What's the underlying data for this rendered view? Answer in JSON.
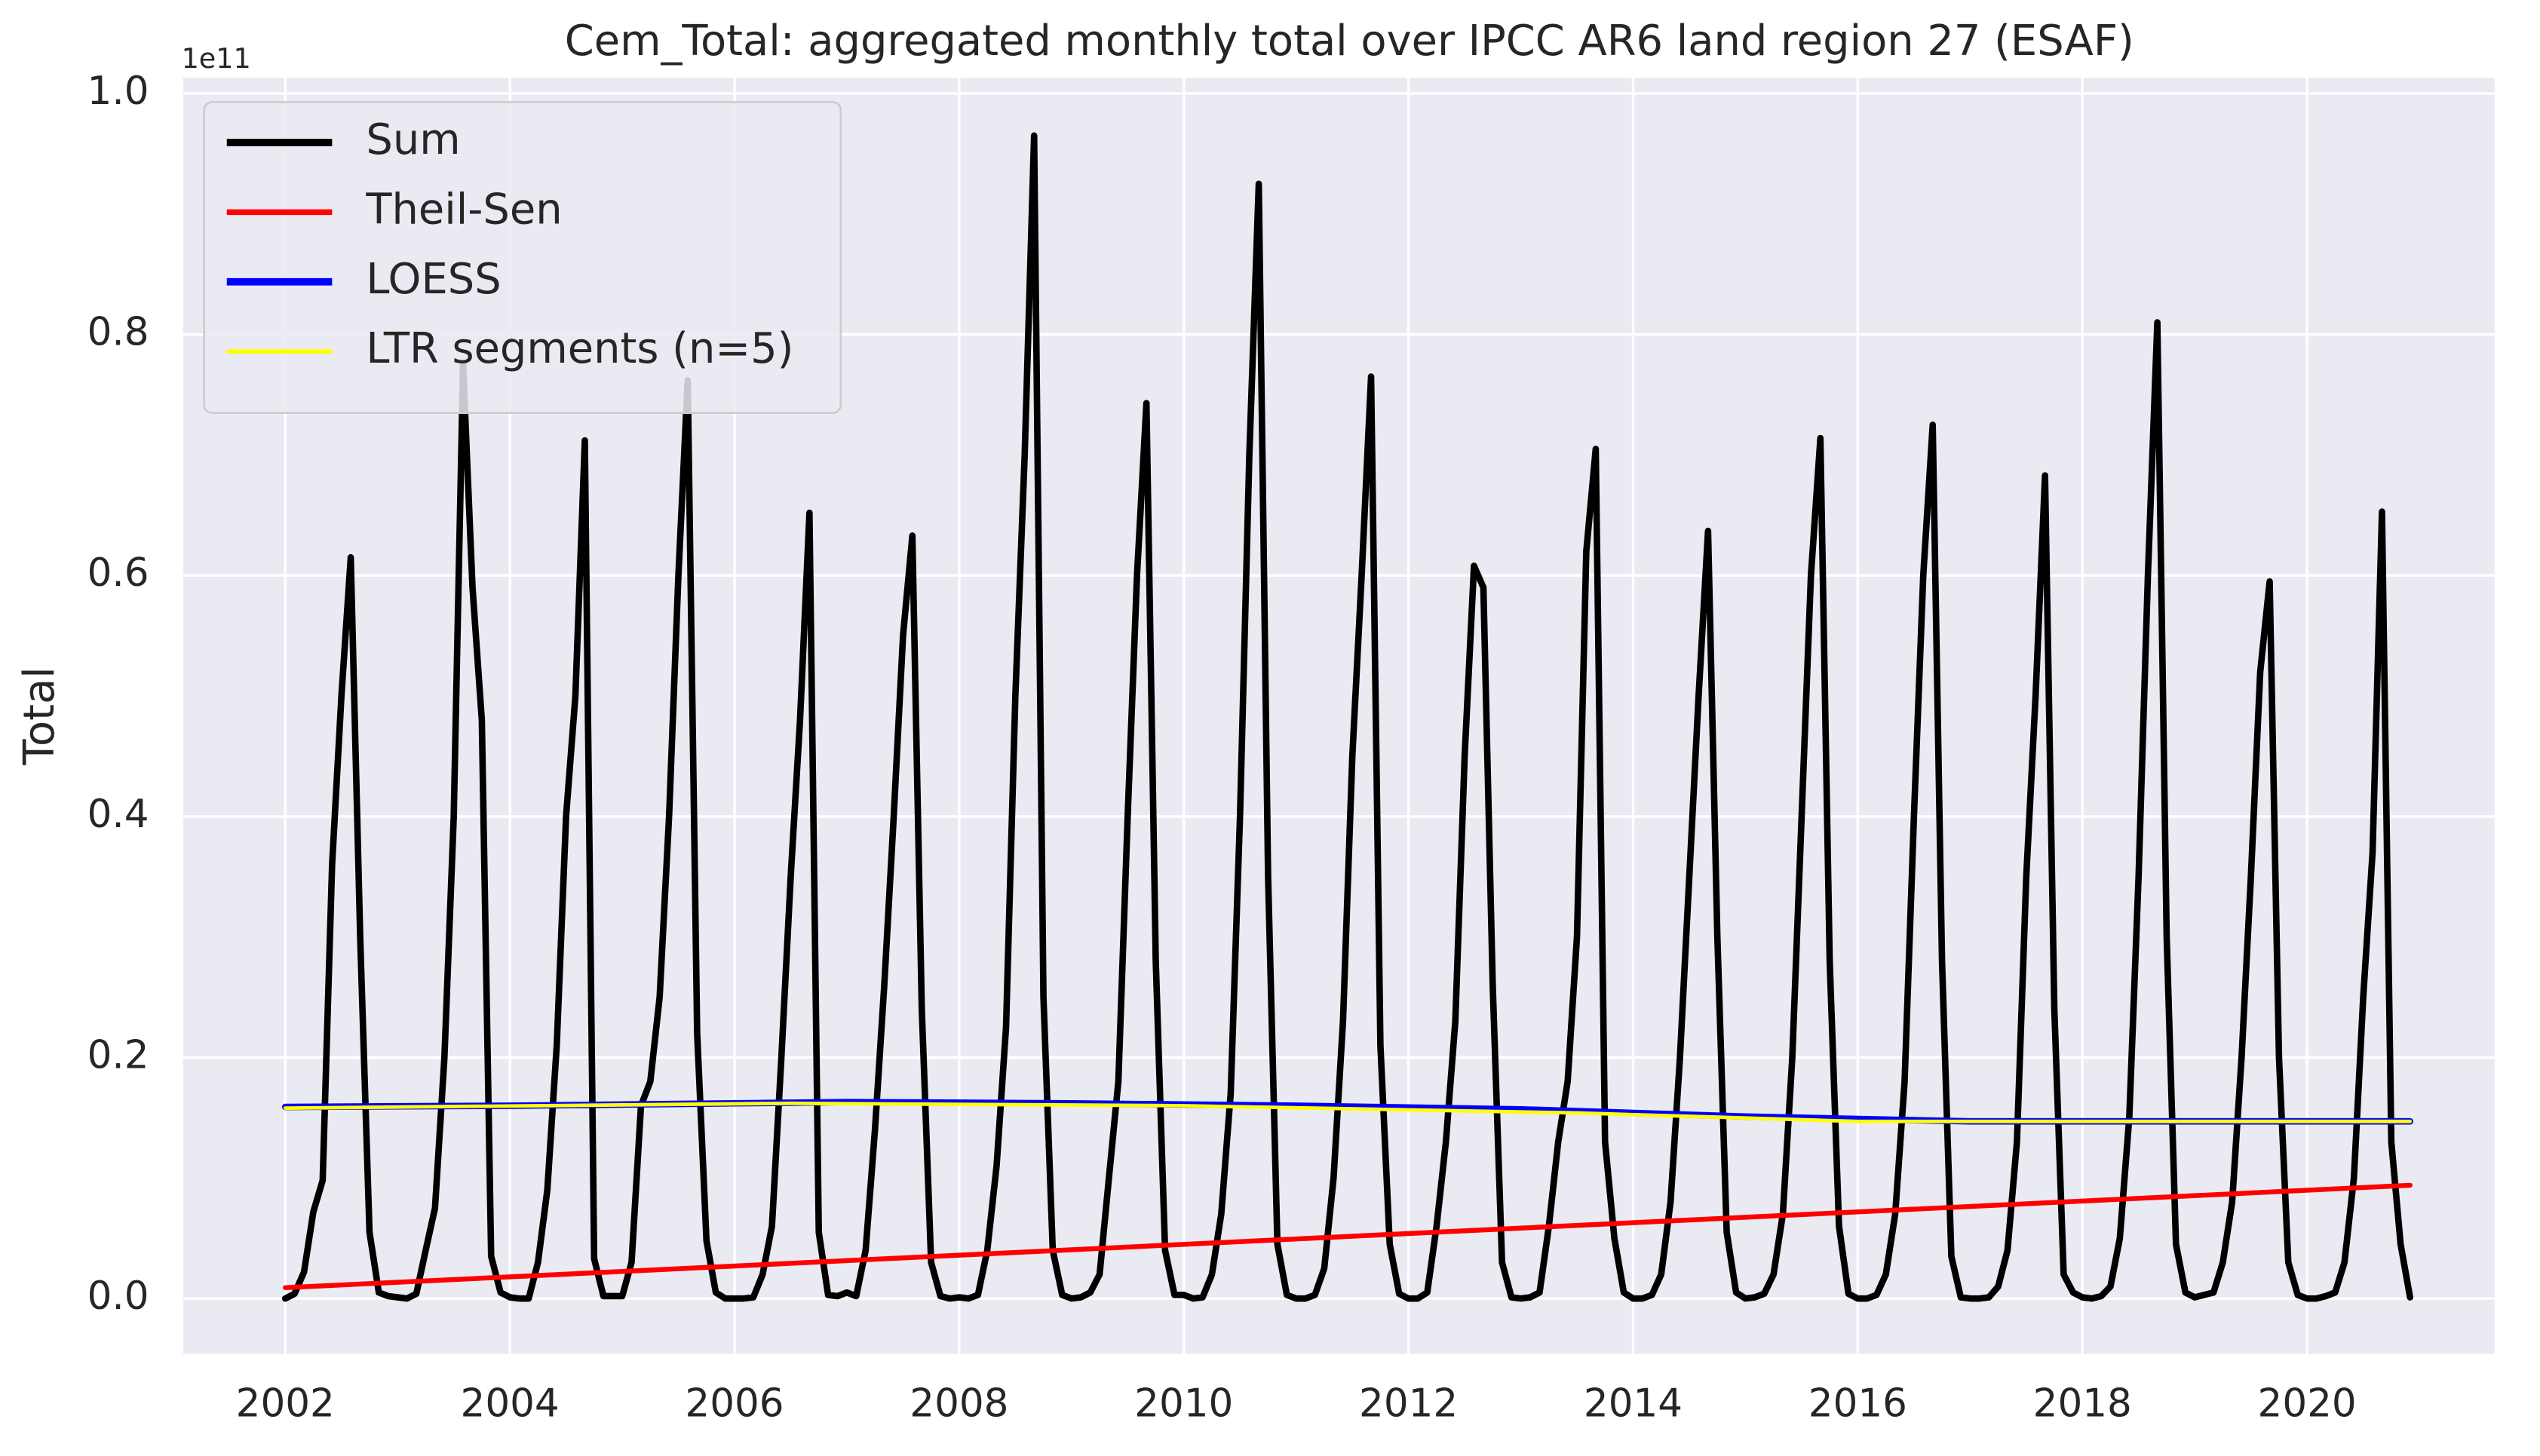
{
  "chart_data": {
    "type": "line",
    "title": "Cem_Total: aggregated monthly total over IPCC AR6 land region 27 (ESAF)",
    "y_label": "Total",
    "offset_text": "1e11",
    "grid": true,
    "legend": "upper left",
    "xlim": [
      2001.09,
      2021.67
    ],
    "ylim": [
      -0.046,
      1.013
    ],
    "xticks": [
      2002,
      2004,
      2006,
      2008,
      2010,
      2012,
      2014,
      2016,
      2018,
      2020
    ],
    "yticks": [
      {
        "value": 0,
        "label": "0.0"
      },
      0.2,
      0.4,
      0.6,
      0.8,
      {
        "value": 1,
        "label": "1.0"
      }
    ],
    "series": [
      {
        "name": "Sum",
        "color": "#000000",
        "x": [
          2002,
          2002.083,
          2002.167,
          2002.25,
          2002.333,
          2002.417,
          2002.5,
          2002.583,
          2002.667,
          2002.75,
          2002.833,
          2002.917,
          2003,
          2003.083,
          2003.167,
          2003.25,
          2003.333,
          2003.417,
          2003.5,
          2003.583,
          2003.667,
          2003.75,
          2003.833,
          2003.917,
          2004,
          2004.083,
          2004.167,
          2004.25,
          2004.333,
          2004.417,
          2004.5,
          2004.583,
          2004.667,
          2004.75,
          2004.833,
          2004.917,
          2005,
          2005.083,
          2005.167,
          2005.25,
          2005.333,
          2005.417,
          2005.5,
          2005.583,
          2005.667,
          2005.75,
          2005.833,
          2005.917,
          2006,
          2006.083,
          2006.167,
          2006.25,
          2006.333,
          2006.417,
          2006.5,
          2006.583,
          2006.667,
          2006.75,
          2006.833,
          2006.917,
          2007,
          2007.083,
          2007.167,
          2007.25,
          2007.333,
          2007.417,
          2007.5,
          2007.583,
          2007.667,
          2007.75,
          2007.833,
          2007.917,
          2008,
          2008.083,
          2008.167,
          2008.25,
          2008.333,
          2008.417,
          2008.5,
          2008.583,
          2008.667,
          2008.75,
          2008.833,
          2008.917,
          2009,
          2009.083,
          2009.167,
          2009.25,
          2009.333,
          2009.417,
          2009.5,
          2009.583,
          2009.667,
          2009.75,
          2009.833,
          2009.917,
          2010,
          2010.083,
          2010.167,
          2010.25,
          2010.333,
          2010.417,
          2010.5,
          2010.583,
          2010.667,
          2010.75,
          2010.833,
          2010.917,
          2011,
          2011.083,
          2011.167,
          2011.25,
          2011.333,
          2011.417,
          2011.5,
          2011.583,
          2011.667,
          2011.75,
          2011.833,
          2011.917,
          2012,
          2012.083,
          2012.167,
          2012.25,
          2012.333,
          2012.417,
          2012.5,
          2012.583,
          2012.667,
          2012.75,
          2012.833,
          2012.917,
          2013,
          2013.083,
          2013.167,
          2013.25,
          2013.333,
          2013.417,
          2013.5,
          2013.583,
          2013.667,
          2013.75,
          2013.833,
          2013.917,
          2014,
          2014.083,
          2014.167,
          2014.25,
          2014.333,
          2014.417,
          2014.5,
          2014.583,
          2014.667,
          2014.75,
          2014.833,
          2014.917,
          2015,
          2015.083,
          2015.167,
          2015.25,
          2015.333,
          2015.417,
          2015.5,
          2015.583,
          2015.667,
          2015.75,
          2015.833,
          2015.917,
          2016,
          2016.083,
          2016.167,
          2016.25,
          2016.333,
          2016.417,
          2016.5,
          2016.583,
          2016.667,
          2016.75,
          2016.833,
          2016.917,
          2017,
          2017.083,
          2017.167,
          2017.25,
          2017.333,
          2017.417,
          2017.5,
          2017.583,
          2017.667,
          2017.75,
          2017.833,
          2017.917,
          2018,
          2018.083,
          2018.167,
          2018.25,
          2018.333,
          2018.417,
          2018.5,
          2018.583,
          2018.667,
          2018.75,
          2018.833,
          2018.917,
          2019,
          2019.083,
          2019.167,
          2019.25,
          2019.333,
          2019.417,
          2019.5,
          2019.583,
          2019.667,
          2019.75,
          2019.833,
          2019.917,
          2020,
          2020.083,
          2020.167,
          2020.25,
          2020.333,
          2020.417,
          2020.5,
          2020.583,
          2020.667,
          2020.75,
          2020.833,
          2020.917
        ],
        "values": [
          0.0,
          0.004,
          0.022,
          0.072,
          0.098,
          0.36,
          0.5,
          0.615,
          0.3,
          0.055,
          0.005,
          0.002,
          0.001,
          0.0,
          0.004,
          0.04,
          0.075,
          0.2,
          0.4,
          0.775,
          0.59,
          0.48,
          0.035,
          0.005,
          0.001,
          0.0,
          0.0,
          0.03,
          0.09,
          0.21,
          0.4,
          0.5,
          0.712,
          0.033,
          0.002,
          0.002,
          0.002,
          0.03,
          0.16,
          0.18,
          0.25,
          0.4,
          0.6,
          0.762,
          0.22,
          0.048,
          0.005,
          0.0,
          0.0,
          0.0,
          0.001,
          0.02,
          0.06,
          0.2,
          0.35,
          0.48,
          0.652,
          0.055,
          0.003,
          0.002,
          0.005,
          0.002,
          0.04,
          0.14,
          0.26,
          0.4,
          0.55,
          0.633,
          0.24,
          0.03,
          0.002,
          0.0,
          0.001,
          0.0,
          0.003,
          0.04,
          0.11,
          0.225,
          0.5,
          0.7,
          0.965,
          0.25,
          0.04,
          0.003,
          0.0,
          0.001,
          0.005,
          0.02,
          0.1,
          0.18,
          0.4,
          0.6,
          0.743,
          0.28,
          0.04,
          0.003,
          0.003,
          0.0,
          0.001,
          0.02,
          0.07,
          0.17,
          0.4,
          0.7,
          0.925,
          0.35,
          0.045,
          0.003,
          0.0,
          0.0,
          0.003,
          0.025,
          0.1,
          0.23,
          0.45,
          0.6,
          0.765,
          0.21,
          0.045,
          0.004,
          0.0,
          0.0,
          0.005,
          0.06,
          0.13,
          0.23,
          0.45,
          0.608,
          0.59,
          0.26,
          0.03,
          0.001,
          0.0,
          0.001,
          0.005,
          0.06,
          0.13,
          0.18,
          0.3,
          0.62,
          0.705,
          0.13,
          0.05,
          0.005,
          0.0,
          0.0,
          0.003,
          0.02,
          0.08,
          0.2,
          0.35,
          0.5,
          0.637,
          0.3,
          0.055,
          0.005,
          0.0,
          0.001,
          0.004,
          0.02,
          0.07,
          0.2,
          0.4,
          0.6,
          0.714,
          0.28,
          0.06,
          0.004,
          0.0,
          0.0,
          0.003,
          0.02,
          0.07,
          0.18,
          0.4,
          0.6,
          0.725,
          0.28,
          0.035,
          0.001,
          0.0,
          0.0,
          0.001,
          0.01,
          0.04,
          0.13,
          0.35,
          0.5,
          0.683,
          0.24,
          0.02,
          0.005,
          0.001,
          0.0,
          0.002,
          0.01,
          0.05,
          0.15,
          0.35,
          0.6,
          0.81,
          0.3,
          0.045,
          0.005,
          0.001,
          0.003,
          0.005,
          0.03,
          0.08,
          0.2,
          0.35,
          0.52,
          0.595,
          0.2,
          0.03,
          0.003,
          0.0,
          0.0,
          0.002,
          0.005,
          0.03,
          0.1,
          0.25,
          0.37,
          0.653,
          0.13,
          0.045,
          0.001
        ]
      },
      {
        "name": "Theil-Sen",
        "color": "#ff0000",
        "x": [
          2002,
          2020.917
        ],
        "values": [
          0.009,
          0.094
        ]
      },
      {
        "name": "LOESS",
        "color": "#0000ff",
        "x": [
          2002,
          2004,
          2006,
          2007,
          2009,
          2011,
          2013,
          2015,
          2017,
          2019,
          2020.917
        ],
        "values": [
          0.159,
          0.16,
          0.162,
          0.163,
          0.162,
          0.16,
          0.157,
          0.151,
          0.147,
          0.147,
          0.147
        ]
      },
      {
        "name": "LTR segments (n=5)",
        "color": "#ffff00",
        "x": [
          2002,
          2006.5,
          2010,
          2013.5,
          2016,
          2020.917
        ],
        "values": [
          0.158,
          0.162,
          0.16,
          0.154,
          0.147,
          0.147
        ]
      }
    ]
  }
}
